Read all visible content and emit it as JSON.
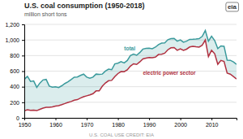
{
  "chart_data": {
    "type": "line",
    "title": "U.S. coal consumption (1950-2018)",
    "subtitle": "million short tons",
    "credit": "U.S. COAL USE  CREDIT: EIA",
    "logo": "eia",
    "x": [
      1950,
      1951,
      1952,
      1953,
      1954,
      1955,
      1956,
      1957,
      1958,
      1959,
      1960,
      1961,
      1962,
      1963,
      1964,
      1965,
      1966,
      1967,
      1968,
      1969,
      1970,
      1971,
      1972,
      1973,
      1974,
      1975,
      1976,
      1977,
      1978,
      1979,
      1980,
      1981,
      1982,
      1983,
      1984,
      1985,
      1986,
      1987,
      1988,
      1989,
      1990,
      1991,
      1992,
      1993,
      1994,
      1995,
      1996,
      1997,
      1998,
      1999,
      2000,
      2001,
      2002,
      2003,
      2004,
      2005,
      2006,
      2007,
      2008,
      2009,
      2010,
      2011,
      2012,
      2013,
      2014,
      2015,
      2016,
      2017,
      2018
    ],
    "series": [
      {
        "color": "#3a9a9c",
        "values": [
          494,
          533,
          467,
          474,
          392,
          447,
          487,
          494,
          408,
          395,
          398,
          389,
          412,
          441,
          463,
          492,
          523,
          524,
          545,
          561,
          523,
          509,
          523,
          562,
          558,
          562,
          601,
          625,
          618,
          693,
          702,
          721,
          706,
          736,
          799,
          818,
          804,
          838,
          883,
          891,
          895,
          888,
          908,
          941,
          960,
          962,
          1004,
          1017,
          1021,
          985,
          1001,
          972,
          985,
          1008,
          1010,
          1013,
          1017,
          1046,
          1121,
          985,
          1048,
          993,
          889,
          924,
          919,
          740,
          739,
          718,
          688
        ]
      },
      {
        "color": "#b03040",
        "values": [
          91,
          104,
          97,
          100,
          93,
          110,
          125,
          135,
          135,
          140,
          152,
          157,
          170,
          184,
          199,
          210,
          226,
          234,
          254,
          271,
          283,
          295,
          310,
          346,
          346,
          406,
          448,
          477,
          481,
          530,
          569,
          594,
          592,
          616,
          664,
          694,
          686,
          718,
          757,
          767,
          774,
          772,
          779,
          813,
          817,
          830,
          874,
          900,
          902,
          867,
          886,
          867,
          882,
          910,
          919,
          912,
          909,
          933,
          1000,
          787,
          867,
          824,
          688,
          737,
          724,
          575,
          561,
          531,
          500
        ]
      }
    ],
    "annotations": [
      {
        "text": "total",
        "x": 1982,
        "y": 870,
        "color": "#3a9a9c"
      },
      {
        "text": "electric power sector",
        "x": 1988,
        "y": 555,
        "color": "#b03040"
      }
    ],
    "xlim": [
      1950,
      2018
    ],
    "xticks": [
      1950,
      1960,
      1970,
      1980,
      1990,
      2000,
      2010
    ],
    "ylim": [
      0,
      1200
    ],
    "yticks": [
      0,
      200,
      400,
      600,
      800,
      {
        "value": 1000,
        "label": "1,000"
      },
      {
        "value": 1200,
        "label": "1,200"
      }
    ],
    "grid": true
  }
}
